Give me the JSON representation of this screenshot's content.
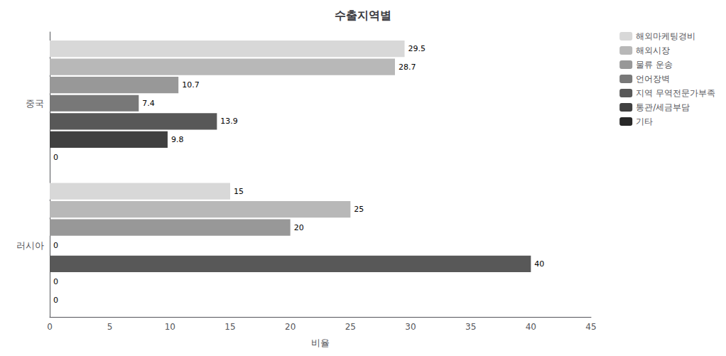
{
  "chart_data": {
    "type": "bar",
    "orientation": "horizontal",
    "title": "수출지역별",
    "xlabel": "비율",
    "categories": [
      "중국",
      "러시아"
    ],
    "series": [
      {
        "name": "해외마케팅경비",
        "color": "#d8d8d8",
        "values": [
          29.5,
          15
        ]
      },
      {
        "name": "해외시장",
        "color": "#b8b8b8",
        "values": [
          28.7,
          25
        ]
      },
      {
        "name": "물류 운송",
        "color": "#989898",
        "values": [
          10.7,
          20
        ]
      },
      {
        "name": "언어장벽",
        "color": "#787878",
        "values": [
          7.4,
          0
        ]
      },
      {
        "name": "지역 무역전문가부족",
        "color": "#585858",
        "values": [
          13.9,
          40
        ]
      },
      {
        "name": "통관/세금부담",
        "color": "#404040",
        "values": [
          9.8,
          0
        ]
      },
      {
        "name": "기타",
        "color": "#282828",
        "values": [
          0,
          0
        ]
      }
    ],
    "xlim": [
      0,
      45
    ],
    "xticks": [
      0,
      5,
      10,
      15,
      20,
      25,
      30,
      35,
      40,
      45
    ],
    "data_labels": true,
    "legend": "upper right",
    "grid": false
  }
}
